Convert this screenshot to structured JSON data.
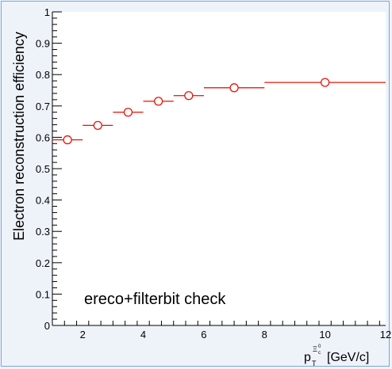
{
  "chart_data": {
    "type": "scatter",
    "ylabel": "Electron reconstruction efficiency",
    "xlabel": {
      "base": "p",
      "subscript": "T",
      "superscript": "Ξ",
      "superscript_sub": "c",
      "superscript_sup": "0",
      "unit": "[GeV/c]"
    },
    "annotation": "ereco+filterbit check",
    "xlim": [
      1,
      12
    ],
    "ylim": [
      0,
      1
    ],
    "x_ticks": [
      "2",
      "4",
      "6",
      "8",
      "10",
      "12"
    ],
    "y_ticks": [
      "0",
      "0.1",
      "0.2",
      "0.3",
      "0.4",
      "0.5",
      "0.6",
      "0.7",
      "0.8",
      "0.9",
      "1"
    ],
    "grid": false,
    "series": [
      {
        "color": "#e8170a",
        "marker": "open-circle",
        "points": [
          {
            "x": 1.5,
            "xlow": 1,
            "xhigh": 2,
            "y": 0.592
          },
          {
            "x": 2.5,
            "xlow": 2,
            "xhigh": 3,
            "y": 0.638
          },
          {
            "x": 3.5,
            "xlow": 3,
            "xhigh": 4,
            "y": 0.68
          },
          {
            "x": 4.5,
            "xlow": 4,
            "xhigh": 5,
            "y": 0.715
          },
          {
            "x": 5.5,
            "xlow": 5,
            "xhigh": 6,
            "y": 0.733
          },
          {
            "x": 7,
            "xlow": 6,
            "xhigh": 8,
            "y": 0.758
          },
          {
            "x": 10,
            "xlow": 8,
            "xhigh": 12,
            "y": 0.775
          }
        ]
      }
    ]
  }
}
